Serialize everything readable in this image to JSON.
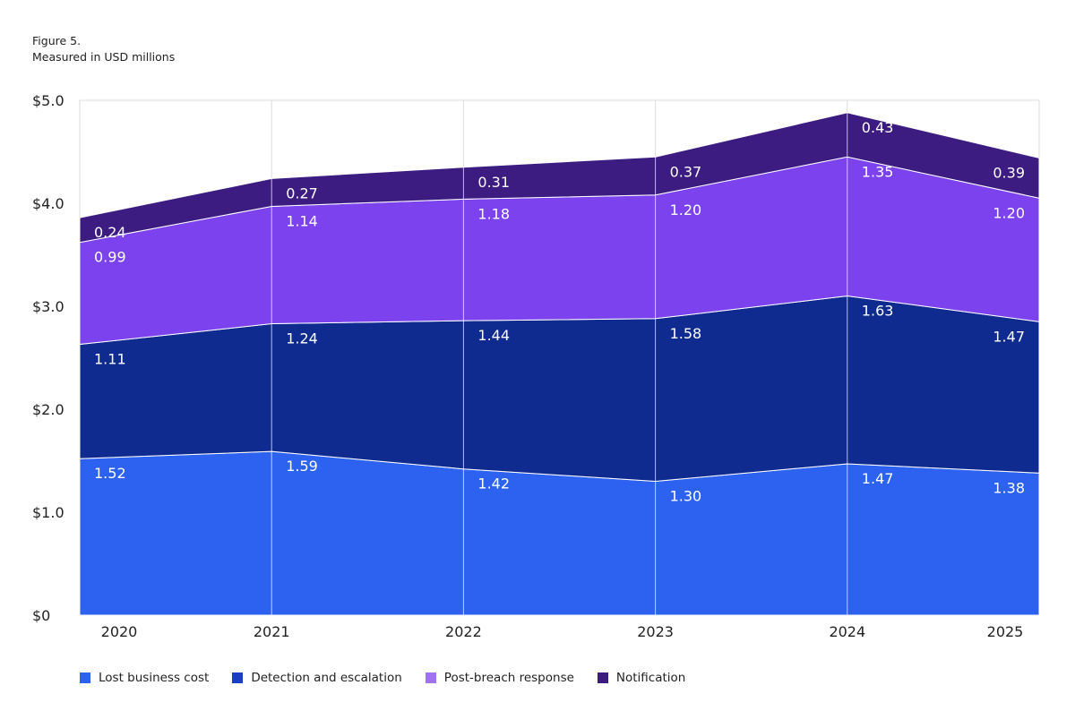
{
  "header": {
    "figure": "Figure 5.",
    "subtitle": "Measured in USD millions"
  },
  "chart_data": {
    "type": "area",
    "stacked": true,
    "categories": [
      "2020",
      "2021",
      "2022",
      "2023",
      "2024",
      "2025"
    ],
    "ylim": [
      0,
      5
    ],
    "yticks": [
      "$0",
      "$1.0",
      "$2.0",
      "$3.0",
      "$4.0",
      "$5.0"
    ],
    "grid": "vertical",
    "legend": "bottom",
    "series": [
      {
        "name": "Lost business cost",
        "color": "#2d62f1",
        "values": [
          1.52,
          1.59,
          1.42,
          1.3,
          1.47,
          1.38
        ]
      },
      {
        "name": "Detection and escalation",
        "color": "#0f2b8f",
        "legend_color": "#1a3fc4",
        "values": [
          1.11,
          1.24,
          1.44,
          1.58,
          1.63,
          1.47
        ]
      },
      {
        "name": "Post-breach response",
        "color": "#7b42ee",
        "legend_color": "#a070f5",
        "values": [
          0.99,
          1.14,
          1.18,
          1.2,
          1.35,
          1.2
        ]
      },
      {
        "name": "Notification",
        "color": "#3d1c82",
        "values": [
          0.24,
          0.27,
          0.31,
          0.37,
          0.43,
          0.39
        ]
      }
    ]
  }
}
